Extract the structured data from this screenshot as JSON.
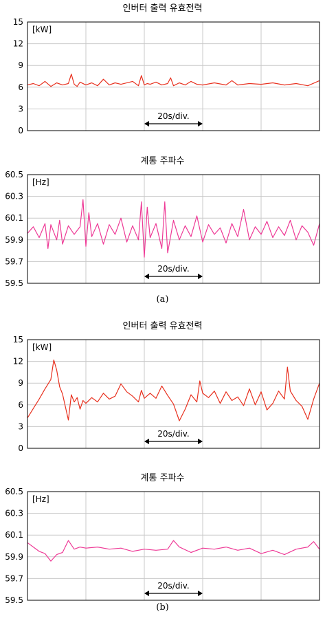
{
  "captions": [
    "(a)",
    "(b)"
  ],
  "chart_data": [
    {
      "type": "line",
      "panel": "(a)",
      "title": "인버터 출력 유효전력",
      "unit": "[kW]",
      "ylim": [
        0,
        15
      ],
      "yticks": [
        "15",
        "12",
        "9",
        "6",
        "3",
        "0"
      ],
      "annotation": "20s/div.",
      "grid": true,
      "x_divisions": 5,
      "color": "#e8301e",
      "series": [
        {
          "x": [
            0,
            0.1,
            0.2,
            0.3,
            0.4,
            0.5,
            0.6,
            0.7,
            0.75,
            0.8,
            0.85,
            0.9,
            1.0,
            1.1,
            1.2,
            1.3,
            1.4,
            1.5,
            1.6,
            1.8,
            1.9,
            1.95,
            2.0,
            2.05,
            2.1,
            2.2,
            2.3,
            2.4,
            2.45,
            2.5,
            2.6,
            2.7,
            2.8,
            2.9,
            3.0,
            3.2,
            3.4,
            3.5,
            3.6,
            3.8,
            4.0,
            4.2,
            4.4,
            4.6,
            4.8,
            5.0
          ],
          "y": [
            6.3,
            6.5,
            6.2,
            6.8,
            6.1,
            6.6,
            6.3,
            6.5,
            7.8,
            6.4,
            6.1,
            6.7,
            6.3,
            6.6,
            6.2,
            7.1,
            6.3,
            6.6,
            6.4,
            6.8,
            6.2,
            7.6,
            6.3,
            6.5,
            6.4,
            6.7,
            6.3,
            6.5,
            7.3,
            6.2,
            6.6,
            6.3,
            6.8,
            6.4,
            6.3,
            6.6,
            6.3,
            6.9,
            6.3,
            6.5,
            6.4,
            6.6,
            6.3,
            6.5,
            6.2,
            6.9
          ]
        }
      ]
    },
    {
      "type": "line",
      "panel": "(a)",
      "title": "계통 주파수",
      "unit": "[Hz]",
      "ylim": [
        59.5,
        60.5
      ],
      "yticks": [
        "60.5",
        "60.3",
        "60.1",
        "59.9",
        "59.7",
        "59.5"
      ],
      "annotation": "20s/div.",
      "grid": true,
      "x_divisions": 5,
      "color": "#ee3a96",
      "series": [
        {
          "x": [
            0,
            0.1,
            0.2,
            0.3,
            0.35,
            0.4,
            0.5,
            0.55,
            0.6,
            0.7,
            0.8,
            0.9,
            0.95,
            1.0,
            1.05,
            1.1,
            1.2,
            1.3,
            1.4,
            1.5,
            1.6,
            1.7,
            1.8,
            1.9,
            1.95,
            2.0,
            2.05,
            2.1,
            2.2,
            2.3,
            2.35,
            2.4,
            2.5,
            2.6,
            2.7,
            2.8,
            2.9,
            3.0,
            3.1,
            3.2,
            3.3,
            3.4,
            3.5,
            3.6,
            3.7,
            3.8,
            3.9,
            4.0,
            4.1,
            4.2,
            4.3,
            4.4,
            4.5,
            4.6,
            4.7,
            4.8,
            4.9,
            5.0
          ],
          "y": [
            59.96,
            60.02,
            59.92,
            60.05,
            59.82,
            60.04,
            59.9,
            60.08,
            59.86,
            60.03,
            59.95,
            60.02,
            60.27,
            59.84,
            60.15,
            59.93,
            60.05,
            59.86,
            60.04,
            59.95,
            60.1,
            59.88,
            60.03,
            59.9,
            60.25,
            59.74,
            60.2,
            59.92,
            60.05,
            59.82,
            60.25,
            59.78,
            60.08,
            59.9,
            60.03,
            59.93,
            60.12,
            59.88,
            60.04,
            59.95,
            60.01,
            59.87,
            60.05,
            59.93,
            60.18,
            59.9,
            60.02,
            59.95,
            60.07,
            59.92,
            60.02,
            59.94,
            60.08,
            59.9,
            60.03,
            59.97,
            59.85,
            60.05
          ]
        }
      ]
    },
    {
      "type": "line",
      "panel": "(b)",
      "title": "인버터 출력 유효전력",
      "unit": "[kW]",
      "ylim": [
        0,
        15
      ],
      "yticks": [
        "15",
        "12",
        "9",
        "6",
        "3",
        "0"
      ],
      "annotation": "20s/div.",
      "grid": true,
      "x_divisions": 5,
      "color": "#e8301e",
      "series": [
        {
          "x": [
            0,
            0.1,
            0.2,
            0.3,
            0.4,
            0.45,
            0.5,
            0.55,
            0.6,
            0.7,
            0.75,
            0.8,
            0.85,
            0.9,
            0.95,
            1.0,
            1.1,
            1.2,
            1.3,
            1.4,
            1.5,
            1.6,
            1.7,
            1.8,
            1.9,
            1.95,
            2.0,
            2.1,
            2.2,
            2.3,
            2.4,
            2.5,
            2.6,
            2.7,
            2.8,
            2.9,
            2.95,
            3.0,
            3.1,
            3.2,
            3.3,
            3.4,
            3.5,
            3.6,
            3.7,
            3.8,
            3.9,
            4.0,
            4.1,
            4.2,
            4.3,
            4.4,
            4.45,
            4.5,
            4.6,
            4.7,
            4.8,
            4.9,
            5.0
          ],
          "y": [
            4.2,
            5.5,
            6.8,
            8.2,
            9.5,
            12.2,
            10.8,
            8.5,
            7.5,
            3.9,
            7.4,
            6.4,
            7.0,
            5.4,
            6.6,
            6.2,
            7.0,
            6.4,
            7.6,
            6.8,
            7.2,
            8.9,
            7.8,
            7.2,
            6.4,
            8.0,
            6.9,
            7.6,
            6.9,
            8.6,
            7.3,
            6.1,
            3.8,
            5.4,
            7.4,
            6.4,
            9.3,
            7.6,
            7.0,
            7.9,
            6.2,
            7.8,
            6.6,
            7.1,
            5.9,
            8.2,
            6.0,
            7.8,
            5.3,
            6.2,
            7.9,
            6.8,
            11.2,
            7.9,
            6.6,
            5.8,
            4.0,
            6.8,
            9.0
          ]
        }
      ]
    },
    {
      "type": "line",
      "panel": "(b)",
      "title": "계통 주파수",
      "unit": "[Hz]",
      "ylim": [
        59.5,
        60.5
      ],
      "yticks": [
        "60.5",
        "60.3",
        "60.1",
        "59.9",
        "59.7",
        "59.5"
      ],
      "annotation": "20s/div.",
      "grid": true,
      "x_divisions": 5,
      "color": "#ee3a96",
      "series": [
        {
          "x": [
            0,
            0.1,
            0.2,
            0.3,
            0.4,
            0.5,
            0.6,
            0.7,
            0.8,
            0.9,
            1.0,
            1.2,
            1.4,
            1.6,
            1.8,
            2.0,
            2.2,
            2.4,
            2.5,
            2.6,
            2.8,
            3.0,
            3.2,
            3.4,
            3.6,
            3.8,
            4.0,
            4.2,
            4.4,
            4.6,
            4.8,
            4.9,
            5.0
          ],
          "y": [
            60.03,
            59.99,
            59.95,
            59.93,
            59.86,
            59.92,
            59.94,
            60.05,
            59.97,
            59.99,
            59.98,
            59.99,
            59.97,
            59.98,
            59.95,
            59.97,
            59.96,
            59.97,
            60.05,
            59.99,
            59.94,
            59.98,
            59.97,
            59.99,
            59.96,
            59.98,
            59.93,
            59.96,
            59.92,
            59.97,
            59.99,
            60.04,
            59.97
          ]
        }
      ]
    }
  ]
}
